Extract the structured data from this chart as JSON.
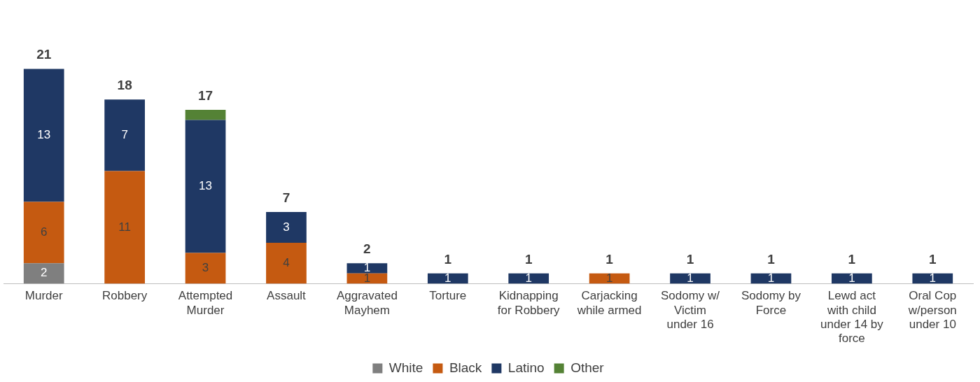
{
  "chart_data": {
    "type": "bar",
    "stacked": true,
    "legend": "bottom",
    "grid": false,
    "categories": [
      "Murder",
      "Robbery",
      "Attempted Murder",
      "Assault",
      "Aggravated Mayhem",
      "Torture",
      "Kidnapping for Robbery",
      "Carjacking while armed",
      "Sodomy w/ Victim under 16",
      "Sodomy by Force",
      "Lewd act with child under 14 by force",
      "Oral Cop w/person under 10"
    ],
    "series": [
      {
        "name": "White",
        "color": "#7f7f7f",
        "values": [
          2,
          null,
          null,
          null,
          null,
          null,
          null,
          null,
          null,
          null,
          null,
          null
        ],
        "value_labels": [
          "2",
          null,
          null,
          null,
          null,
          null,
          null,
          null,
          null,
          null,
          null,
          null
        ]
      },
      {
        "name": "Black",
        "color": "#c55a11",
        "values": [
          6,
          11,
          3,
          4,
          1,
          null,
          null,
          1,
          null,
          null,
          null,
          null
        ],
        "value_labels": [
          "6",
          "11",
          "3",
          "4",
          "1",
          null,
          null,
          "1",
          null,
          null,
          null,
          null
        ]
      },
      {
        "name": "Latino",
        "color": "#1f3864",
        "values": [
          13,
          7,
          13,
          3,
          1,
          1,
          1,
          null,
          1,
          1,
          1,
          1
        ],
        "value_labels": [
          "13",
          "7",
          "13",
          "3",
          "1",
          "1",
          "1",
          null,
          "1",
          "1",
          "1",
          "1"
        ]
      },
      {
        "name": "Other",
        "color": "#548235",
        "values": [
          null,
          null,
          1,
          null,
          null,
          null,
          null,
          null,
          null,
          null,
          null,
          null
        ],
        "value_labels": [
          null,
          null,
          null,
          null,
          null,
          null,
          null,
          null,
          null,
          null,
          null,
          null
        ]
      }
    ],
    "totals": [
      "21",
      "18",
      "17",
      "7",
      "2",
      "1",
      "1",
      "1",
      "1",
      "1",
      "1",
      "1"
    ]
  }
}
